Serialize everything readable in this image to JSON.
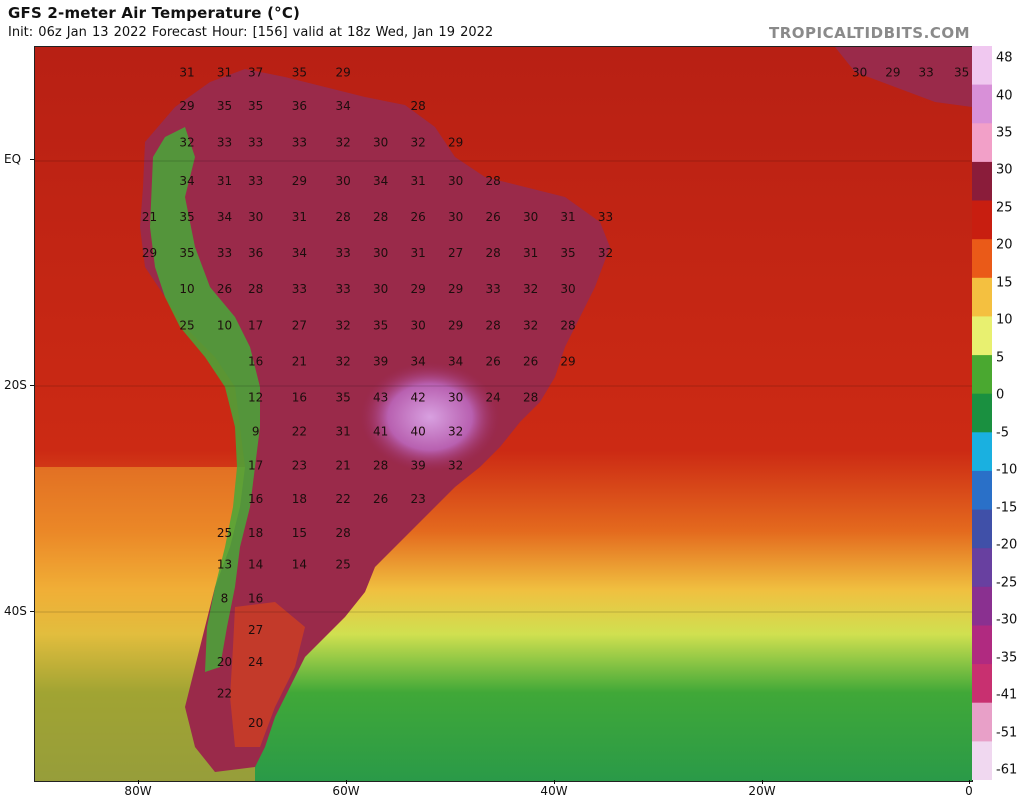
{
  "header": {
    "title": "GFS 2-meter Air Temperature (°C)",
    "subtitle": "Init: 06z Jan 13 2022   Forecast Hour: [156]   valid at 18z Wed, Jan 19 2022",
    "brand": "TROPICALTIDBITS.COM"
  },
  "axes": {
    "latitude_labels": [
      "EQ",
      "20S",
      "40S"
    ],
    "longitude_labels": [
      "80W",
      "60W",
      "40W",
      "20W",
      "0"
    ]
  },
  "colorbar": {
    "labels": [
      "48",
      "40",
      "35",
      "30",
      "25",
      "20",
      "15",
      "10",
      "5",
      "0",
      "-5",
      "-10",
      "-15",
      "-20",
      "-25",
      "-30",
      "-35",
      "-41",
      "-51",
      "-61"
    ],
    "colors": [
      "#f0c8f0",
      "#d890d8",
      "#f2a0c8",
      "#8a1c3a",
      "#c81e10",
      "#ea5a18",
      "#f4c040",
      "#e8f070",
      "#4aa830",
      "#1a9040",
      "#1ab0e0",
      "#2a70c8",
      "#4050a8",
      "#6840a0",
      "#8a3090",
      "#b02a80",
      "#c83070",
      "#e8a0c8",
      "#f0d8f0"
    ]
  },
  "map": {
    "land_color": "#9a2a4a",
    "ocean_color": "#cc2616",
    "hot_color": "#c060b8",
    "andes_color": "#48a838",
    "cool_ocean_color": "#e89820",
    "cold_ocean_color": "#48b848"
  },
  "temperature_labels": [
    {
      "v": "31",
      "lon": -75.4,
      "lat": 7.4
    },
    {
      "v": "31",
      "lon": -71.8,
      "lat": 7.4
    },
    {
      "v": "37",
      "lon": -68.8,
      "lat": 7.4
    },
    {
      "v": "35",
      "lon": -64.6,
      "lat": 7.4
    },
    {
      "v": "29",
      "lon": -60.4,
      "lat": 7.4
    },
    {
      "v": "29",
      "lon": -75.4,
      "lat": 4.4
    },
    {
      "v": "35",
      "lon": -71.8,
      "lat": 4.4
    },
    {
      "v": "35",
      "lon": -68.8,
      "lat": 4.4
    },
    {
      "v": "36",
      "lon": -64.6,
      "lat": 4.4
    },
    {
      "v": "34",
      "lon": -60.4,
      "lat": 4.4
    },
    {
      "v": "28",
      "lon": -53.2,
      "lat": 4.4
    },
    {
      "v": "32",
      "lon": -75.4,
      "lat": 1.2
    },
    {
      "v": "33",
      "lon": -71.8,
      "lat": 1.2
    },
    {
      "v": "33",
      "lon": -68.8,
      "lat": 1.2
    },
    {
      "v": "33",
      "lon": -64.6,
      "lat": 1.2
    },
    {
      "v": "32",
      "lon": -60.4,
      "lat": 1.2
    },
    {
      "v": "30",
      "lon": -56.8,
      "lat": 1.2
    },
    {
      "v": "32",
      "lon": -53.2,
      "lat": 1.2
    },
    {
      "v": "29",
      "lon": -49.6,
      "lat": 1.2
    },
    {
      "v": "34",
      "lon": -75.4,
      "lat": -2.2
    },
    {
      "v": "31",
      "lon": -71.8,
      "lat": -2.2
    },
    {
      "v": "33",
      "lon": -68.8,
      "lat": -2.2
    },
    {
      "v": "29",
      "lon": -64.6,
      "lat": -2.2
    },
    {
      "v": "30",
      "lon": -60.4,
      "lat": -2.2
    },
    {
      "v": "34",
      "lon": -56.8,
      "lat": -2.2
    },
    {
      "v": "31",
      "lon": -53.2,
      "lat": -2.2
    },
    {
      "v": "30",
      "lon": -49.6,
      "lat": -2.2
    },
    {
      "v": "28",
      "lon": -46.0,
      "lat": -2.2
    },
    {
      "v": "21",
      "lon": -79.0,
      "lat": -5.4
    },
    {
      "v": "35",
      "lon": -75.4,
      "lat": -5.4
    },
    {
      "v": "34",
      "lon": -71.8,
      "lat": -5.4
    },
    {
      "v": "30",
      "lon": -68.8,
      "lat": -5.4
    },
    {
      "v": "31",
      "lon": -64.6,
      "lat": -5.4
    },
    {
      "v": "28",
      "lon": -60.4,
      "lat": -5.4
    },
    {
      "v": "28",
      "lon": -56.8,
      "lat": -5.4
    },
    {
      "v": "26",
      "lon": -53.2,
      "lat": -5.4
    },
    {
      "v": "30",
      "lon": -49.6,
      "lat": -5.4
    },
    {
      "v": "26",
      "lon": -46.0,
      "lat": -5.4
    },
    {
      "v": "30",
      "lon": -42.4,
      "lat": -5.4
    },
    {
      "v": "31",
      "lon": -38.8,
      "lat": -5.4
    },
    {
      "v": "33",
      "lon": -35.2,
      "lat": -5.4
    },
    {
      "v": "29",
      "lon": -79.0,
      "lat": -8.6
    },
    {
      "v": "35",
      "lon": -75.4,
      "lat": -8.6
    },
    {
      "v": "33",
      "lon": -71.8,
      "lat": -8.6
    },
    {
      "v": "36",
      "lon": -68.8,
      "lat": -8.6
    },
    {
      "v": "34",
      "lon": -64.6,
      "lat": -8.6
    },
    {
      "v": "33",
      "lon": -60.4,
      "lat": -8.6
    },
    {
      "v": "30",
      "lon": -56.8,
      "lat": -8.6
    },
    {
      "v": "31",
      "lon": -53.2,
      "lat": -8.6
    },
    {
      "v": "27",
      "lon": -49.6,
      "lat": -8.6
    },
    {
      "v": "28",
      "lon": -46.0,
      "lat": -8.6
    },
    {
      "v": "31",
      "lon": -42.4,
      "lat": -8.6
    },
    {
      "v": "35",
      "lon": -38.8,
      "lat": -8.6
    },
    {
      "v": "32",
      "lon": -35.2,
      "lat": -8.6
    },
    {
      "v": "10",
      "lon": -75.4,
      "lat": -11.8
    },
    {
      "v": "26",
      "lon": -71.8,
      "lat": -11.8
    },
    {
      "v": "28",
      "lon": -68.8,
      "lat": -11.8
    },
    {
      "v": "33",
      "lon": -64.6,
      "lat": -11.8
    },
    {
      "v": "33",
      "lon": -60.4,
      "lat": -11.8
    },
    {
      "v": "30",
      "lon": -56.8,
      "lat": -11.8
    },
    {
      "v": "29",
      "lon": -53.2,
      "lat": -11.8
    },
    {
      "v": "29",
      "lon": -49.6,
      "lat": -11.8
    },
    {
      "v": "33",
      "lon": -46.0,
      "lat": -11.8
    },
    {
      "v": "32",
      "lon": -42.4,
      "lat": -11.8
    },
    {
      "v": "30",
      "lon": -38.8,
      "lat": -11.8
    },
    {
      "v": "25",
      "lon": -75.4,
      "lat": -15.0
    },
    {
      "v": "10",
      "lon": -71.8,
      "lat": -15.0
    },
    {
      "v": "17",
      "lon": -68.8,
      "lat": -15.0
    },
    {
      "v": "27",
      "lon": -64.6,
      "lat": -15.0
    },
    {
      "v": "32",
      "lon": -60.4,
      "lat": -15.0
    },
    {
      "v": "35",
      "lon": -56.8,
      "lat": -15.0
    },
    {
      "v": "30",
      "lon": -53.2,
      "lat": -15.0
    },
    {
      "v": "29",
      "lon": -49.6,
      "lat": -15.0
    },
    {
      "v": "28",
      "lon": -46.0,
      "lat": -15.0
    },
    {
      "v": "32",
      "lon": -42.4,
      "lat": -15.0
    },
    {
      "v": "28",
      "lon": -38.8,
      "lat": -15.0
    },
    {
      "v": "16",
      "lon": -68.8,
      "lat": -18.2
    },
    {
      "v": "21",
      "lon": -64.6,
      "lat": -18.2
    },
    {
      "v": "32",
      "lon": -60.4,
      "lat": -18.2
    },
    {
      "v": "39",
      "lon": -56.8,
      "lat": -18.2
    },
    {
      "v": "34",
      "lon": -53.2,
      "lat": -18.2
    },
    {
      "v": "34",
      "lon": -49.6,
      "lat": -18.2
    },
    {
      "v": "26",
      "lon": -46.0,
      "lat": -18.2
    },
    {
      "v": "26",
      "lon": -42.4,
      "lat": -18.2
    },
    {
      "v": "29",
      "lon": -38.8,
      "lat": -18.2
    },
    {
      "v": "12",
      "lon": -68.8,
      "lat": -21.4
    },
    {
      "v": "16",
      "lon": -64.6,
      "lat": -21.4
    },
    {
      "v": "35",
      "lon": -60.4,
      "lat": -21.4
    },
    {
      "v": "43",
      "lon": -56.8,
      "lat": -21.4
    },
    {
      "v": "42",
      "lon": -53.2,
      "lat": -21.4
    },
    {
      "v": "30",
      "lon": -49.6,
      "lat": -21.4
    },
    {
      "v": "24",
      "lon": -46.0,
      "lat": -21.4
    },
    {
      "v": "28",
      "lon": -42.4,
      "lat": -21.4
    },
    {
      "v": "9",
      "lon": -68.8,
      "lat": -24.4
    },
    {
      "v": "22",
      "lon": -64.6,
      "lat": -24.4
    },
    {
      "v": "31",
      "lon": -60.4,
      "lat": -24.4
    },
    {
      "v": "41",
      "lon": -56.8,
      "lat": -24.4
    },
    {
      "v": "40",
      "lon": -53.2,
      "lat": -24.4
    },
    {
      "v": "32",
      "lon": -49.6,
      "lat": -24.4
    },
    {
      "v": "17",
      "lon": -68.8,
      "lat": -27.4
    },
    {
      "v": "23",
      "lon": -64.6,
      "lat": -27.4
    },
    {
      "v": "21",
      "lon": -60.4,
      "lat": -27.4
    },
    {
      "v": "28",
      "lon": -56.8,
      "lat": -27.4
    },
    {
      "v": "39",
      "lon": -53.2,
      "lat": -27.4
    },
    {
      "v": "32",
      "lon": -49.6,
      "lat": -27.4
    },
    {
      "v": "16",
      "lon": -68.8,
      "lat": -30.4
    },
    {
      "v": "18",
      "lon": -64.6,
      "lat": -30.4
    },
    {
      "v": "22",
      "lon": -60.4,
      "lat": -30.4
    },
    {
      "v": "26",
      "lon": -56.8,
      "lat": -30.4
    },
    {
      "v": "23",
      "lon": -53.2,
      "lat": -30.4
    },
    {
      "v": "25",
      "lon": -71.8,
      "lat": -33.4
    },
    {
      "v": "18",
      "lon": -68.8,
      "lat": -33.4
    },
    {
      "v": "15",
      "lon": -64.6,
      "lat": -33.4
    },
    {
      "v": "28",
      "lon": -60.4,
      "lat": -33.4
    },
    {
      "v": "13",
      "lon": -71.8,
      "lat": -36.2
    },
    {
      "v": "14",
      "lon": -68.8,
      "lat": -36.2
    },
    {
      "v": "14",
      "lon": -64.6,
      "lat": -36.2
    },
    {
      "v": "25",
      "lon": -60.4,
      "lat": -36.2
    },
    {
      "v": "8",
      "lon": -71.8,
      "lat": -39.2
    },
    {
      "v": "16",
      "lon": -68.8,
      "lat": -39.2
    },
    {
      "v": "27",
      "lon": -68.8,
      "lat": -42.0
    },
    {
      "v": "20",
      "lon": -71.8,
      "lat": -44.8
    },
    {
      "v": "24",
      "lon": -68.8,
      "lat": -44.8
    },
    {
      "v": "22",
      "lon": -71.8,
      "lat": -47.6
    },
    {
      "v": "20",
      "lon": -68.8,
      "lat": -50.2
    },
    {
      "v": "30",
      "lon": -10.8,
      "lat": 7.4
    },
    {
      "v": "29",
      "lon": -7.6,
      "lat": 7.4
    },
    {
      "v": "33",
      "lon": -4.4,
      "lat": 7.4
    },
    {
      "v": "35",
      "lon": -1.0,
      "lat": 7.4
    }
  ]
}
